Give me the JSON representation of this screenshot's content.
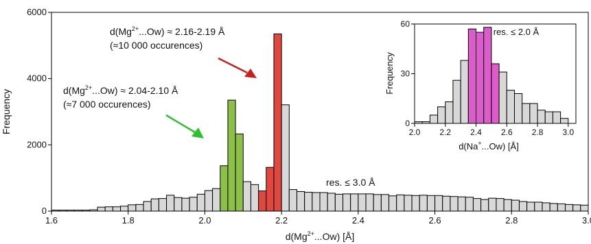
{
  "chart_data": [
    {
      "type": "bar",
      "xlabel_parts": [
        "d(Mg",
        "2+",
        "...Ow) [Å]"
      ],
      "ylabel": "Frequency",
      "xlim": [
        1.6,
        3.0
      ],
      "ylim": [
        0,
        6000
      ],
      "xticks": [
        "1.6",
        "1.8",
        "2.0",
        "2.2",
        "2.4",
        "2.6",
        "2.8",
        "3.0"
      ],
      "yticks": [
        "0",
        "2000",
        "4000",
        "6000"
      ],
      "bin_width": 0.02,
      "bins_start": [
        1.6,
        1.62,
        1.64,
        1.66,
        1.68,
        1.7,
        1.72,
        1.74,
        1.76,
        1.78,
        1.8,
        1.82,
        1.84,
        1.86,
        1.88,
        1.9,
        1.92,
        1.94,
        1.96,
        1.98,
        2.0,
        2.02,
        2.04,
        2.06,
        2.08,
        2.1,
        2.12,
        2.14,
        2.16,
        2.18,
        2.2,
        2.22,
        2.24,
        2.26,
        2.28,
        2.3,
        2.32,
        2.34,
        2.36,
        2.38,
        2.4,
        2.42,
        2.44,
        2.46,
        2.48,
        2.5,
        2.52,
        2.54,
        2.56,
        2.58,
        2.6,
        2.62,
        2.64,
        2.66,
        2.68,
        2.7,
        2.72,
        2.74,
        2.76,
        2.78,
        2.8,
        2.82,
        2.84,
        2.86,
        2.88,
        2.9,
        2.92,
        2.94,
        2.96,
        2.98
      ],
      "values": [
        30,
        30,
        30,
        30,
        30,
        40,
        120,
        130,
        130,
        150,
        190,
        200,
        290,
        370,
        380,
        480,
        410,
        390,
        420,
        510,
        620,
        680,
        1370,
        3350,
        2330,
        890,
        800,
        610,
        1320,
        5350,
        3210,
        650,
        590,
        570,
        560,
        560,
        540,
        510,
        520,
        520,
        520,
        520,
        500,
        500,
        460,
        490,
        480,
        470,
        480,
        470,
        470,
        450,
        440,
        430,
        420,
        380,
        350,
        390,
        380,
        350,
        330,
        290,
        270,
        270,
        250,
        230,
        220,
        200,
        190,
        180
      ],
      "highlights": [
        {
          "start": 2.04,
          "end": 2.1,
          "color": "#8dc04a"
        },
        {
          "start": 2.14,
          "end": 2.2,
          "color": "#e0473f"
        }
      ],
      "default_color": "#d8d8d8",
      "annotations": [
        {
          "id": "mg216",
          "line1_pre": "d(Mg",
          "line1_sup": "2+",
          "line1_post": "...Ow) ≈ 2.16-2.19 Å",
          "line2": "(≈10 000 occurences)"
        },
        {
          "id": "mg204",
          "line1_pre": "d(Mg",
          "line1_sup": "2+",
          "line1_post": "...Ow) ≈ 2.04-2.10 Å",
          "line2": "(≈7 000 occurences)"
        }
      ],
      "arrows": [
        {
          "id": "red-arrow",
          "color": "#c8201e"
        },
        {
          "id": "green-arrow",
          "color": "#2dc033"
        }
      ],
      "resolution_label": "res. ≤ 3.0 Å"
    },
    {
      "type": "bar",
      "inset": true,
      "xlabel_parts": [
        "d(Na",
        "+",
        "...Ow) [Å]"
      ],
      "ylabel": "Frequency",
      "xlim": [
        2.0,
        3.05
      ],
      "ylim": [
        0,
        60
      ],
      "xticks": [
        "2.0",
        "2.2",
        "2.4",
        "2.6",
        "2.8",
        "3.0"
      ],
      "yticks": [
        "0",
        "30",
        "60"
      ],
      "bin_width": 0.05,
      "bins_start": [
        2.0,
        2.05,
        2.1,
        2.15,
        2.2,
        2.25,
        2.3,
        2.35,
        2.4,
        2.45,
        2.5,
        2.55,
        2.6,
        2.65,
        2.7,
        2.75,
        2.8,
        2.85,
        2.9,
        2.95,
        3.0
      ],
      "values": [
        1,
        1,
        5,
        10,
        13,
        26,
        38,
        57,
        55,
        58,
        36,
        31,
        20,
        18,
        12,
        12,
        8,
        7,
        7,
        3,
        0
      ],
      "highlights": [
        {
          "start": 2.35,
          "end": 2.55,
          "color": "#dc5ccb"
        }
      ],
      "default_color": "#d8d8d8",
      "resolution_label": "res. ≤ 2.0 Å"
    }
  ]
}
